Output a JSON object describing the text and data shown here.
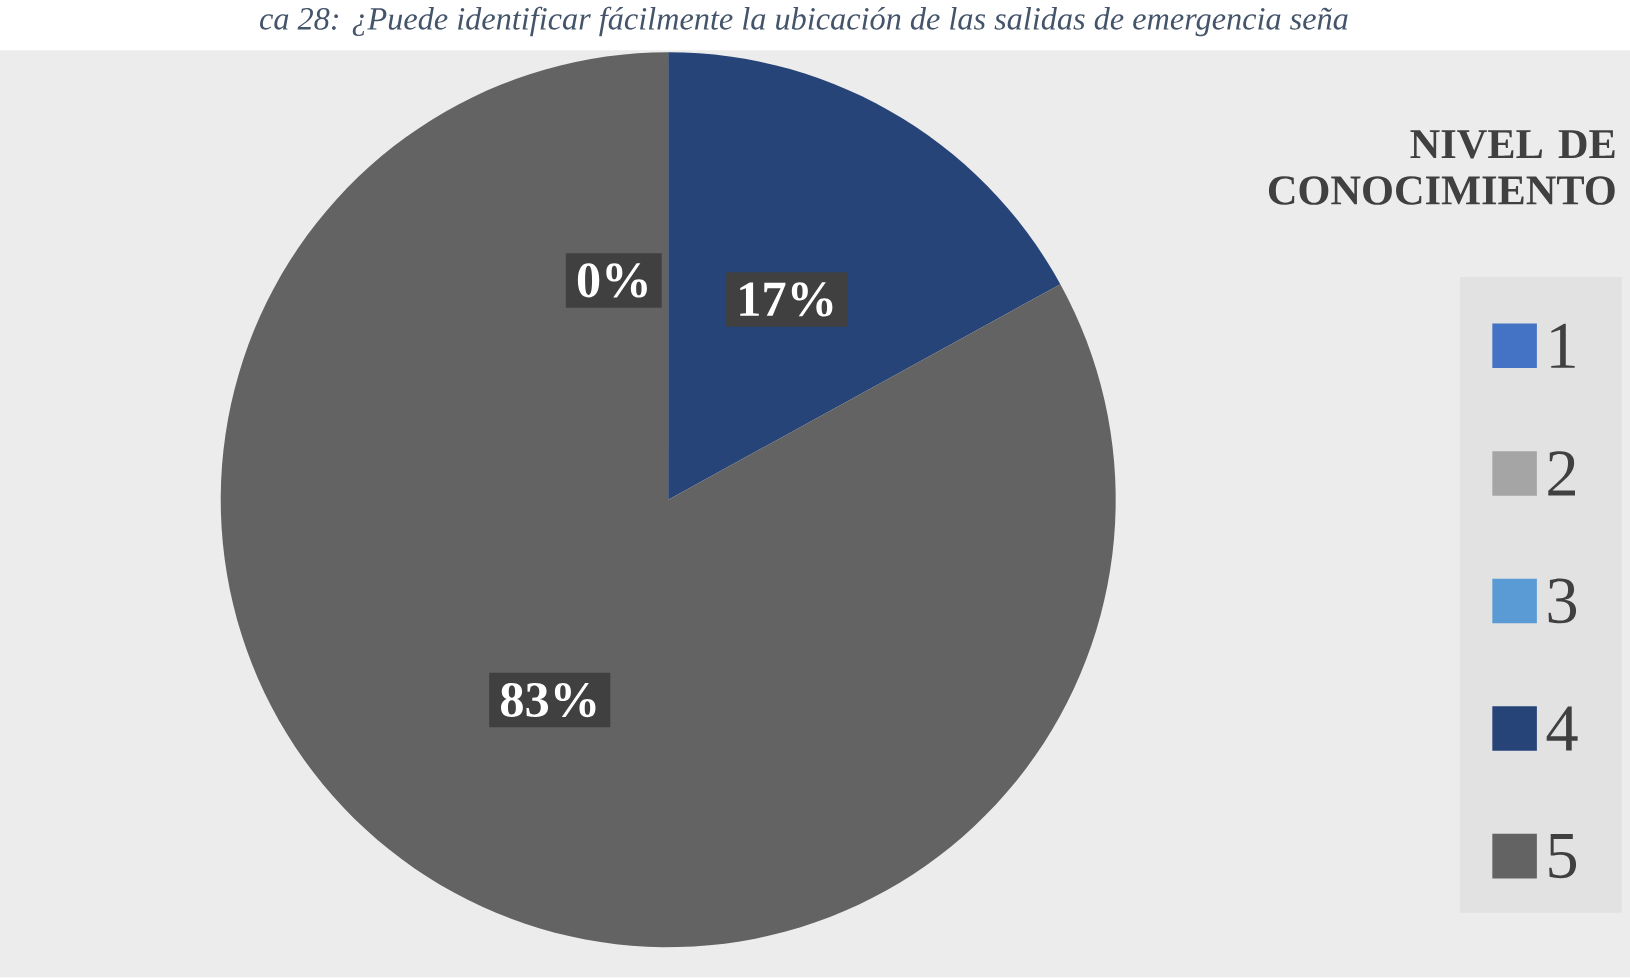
{
  "chart_data": {
    "type": "pie",
    "title": "ca 28: ¿Puede identificar fácilmente la ubicación de las salidas de emergencia seña",
    "legend_title": "NIVEL DE CONOCIMIENTO",
    "categories": [
      "1",
      "2",
      "3",
      "4",
      "5"
    ],
    "values": [
      0,
      0,
      0,
      17,
      83
    ],
    "colors": [
      "#4472c4",
      "#a5a5a5",
      "#5b9bd5",
      "#264478",
      "#636363"
    ],
    "value_labels": [
      null,
      null,
      "0%",
      "17%",
      "83%"
    ],
    "legend": "right"
  }
}
